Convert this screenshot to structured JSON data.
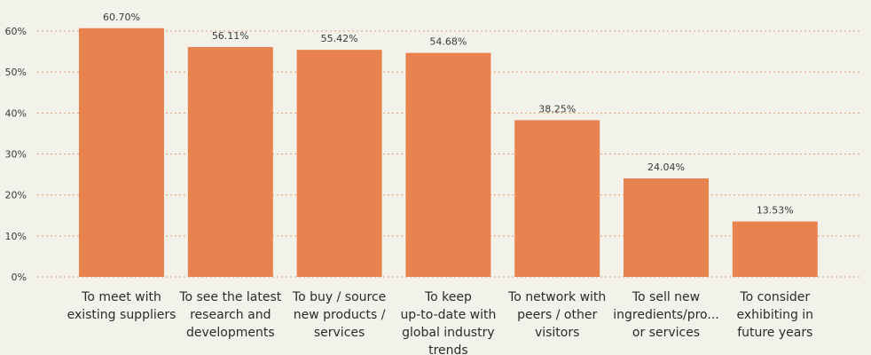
{
  "chart_data": {
    "type": "bar",
    "categories": [
      [
        "To meet with",
        "existing suppliers"
      ],
      [
        "To see the latest",
        "research and",
        "developments"
      ],
      [
        "To buy / source",
        "new products /",
        "services"
      ],
      [
        "To keep",
        "up-to-date with",
        "global industry",
        "trends"
      ],
      [
        "To network with",
        "peers / other",
        "visitors"
      ],
      [
        "To sell new",
        "ingredients/pro...",
        "or services"
      ],
      [
        "To consider",
        "exhibiting in",
        "future years"
      ]
    ],
    "values": [
      60.7,
      56.11,
      55.42,
      54.68,
      38.25,
      24.04,
      13.53
    ],
    "data_labels": [
      "60.70%",
      "56.11%",
      "55.42%",
      "54.68%",
      "38.25%",
      "24.04%",
      "13.53%"
    ],
    "yticks": [
      "0%",
      "10%",
      "20%",
      "30%",
      "40%",
      "50%",
      "60%"
    ],
    "ylim": [
      0,
      60
    ],
    "grid": true,
    "colors": {
      "bar": "#e8834f",
      "grid": "#e79a6f",
      "background": "#f2f1ea"
    }
  }
}
